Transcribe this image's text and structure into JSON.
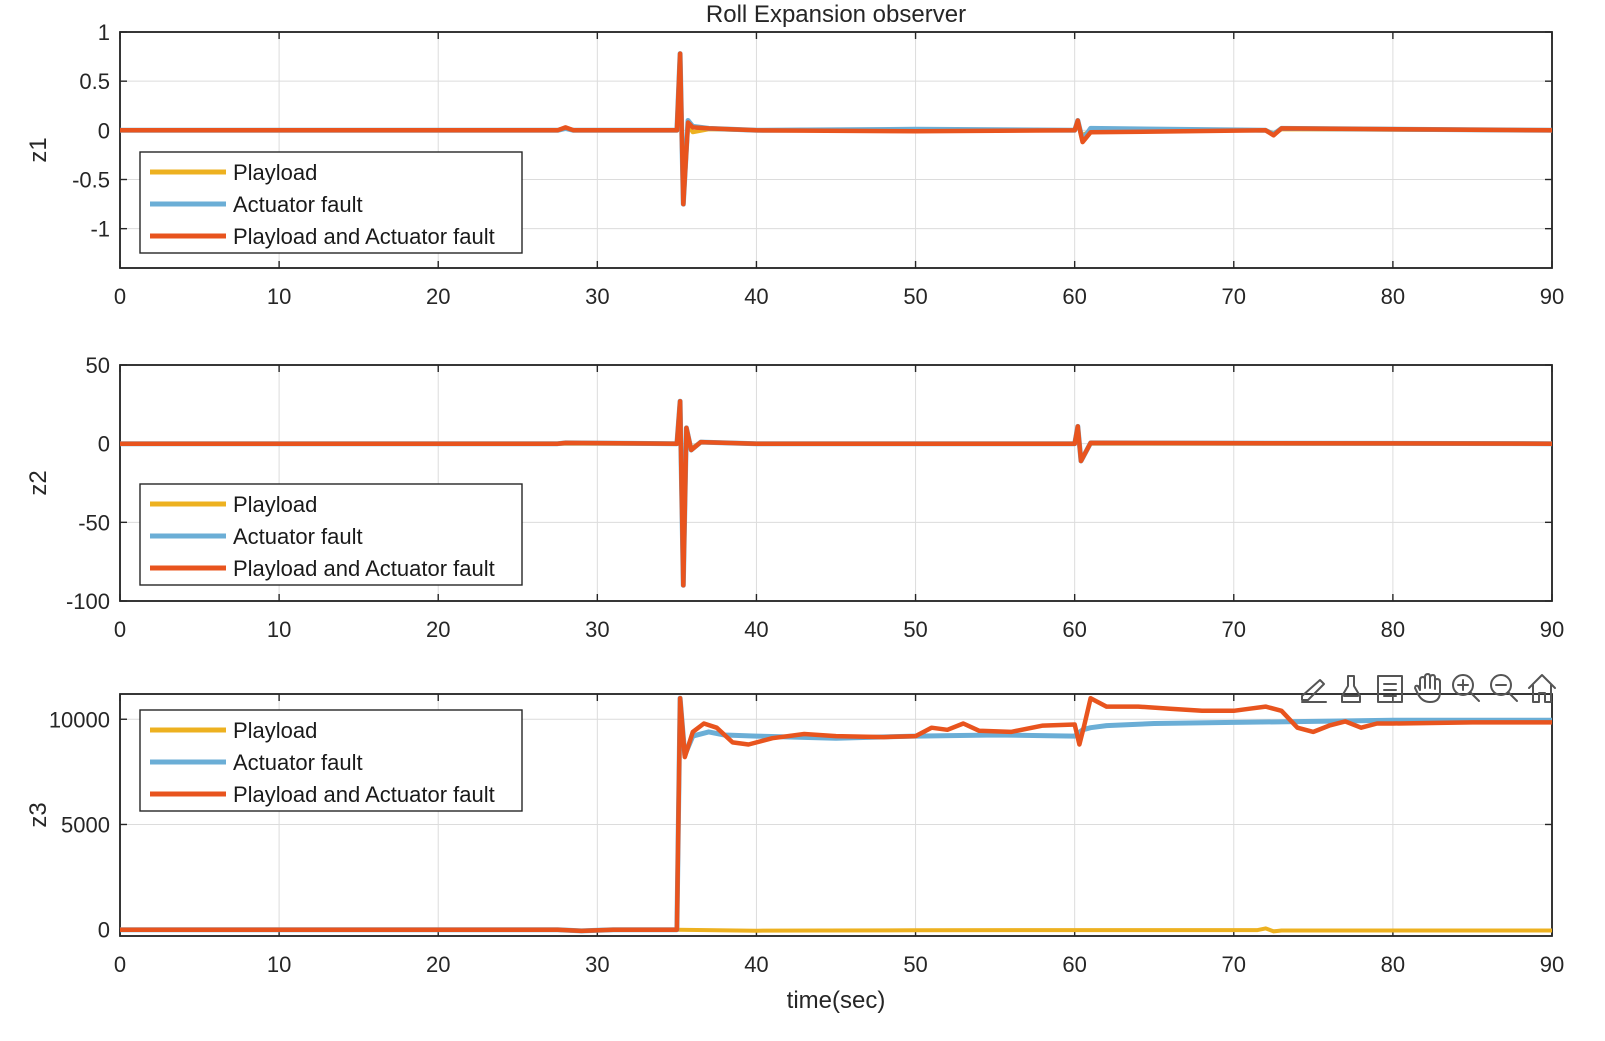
{
  "figure_title": "Roll Expansion observer",
  "colors": {
    "playload": "#EDB120",
    "actuator": "#6BAED6",
    "both": "#E8541E"
  },
  "toolbar": {
    "items": [
      "brush-edit-icon",
      "data-tip-icon",
      "legend-toggle-icon",
      "pan-hand-icon",
      "zoom-in-icon",
      "zoom-out-icon",
      "home-icon"
    ]
  },
  "chart_data": [
    {
      "type": "line",
      "ylabel": "z1",
      "xlabel": "",
      "xlim": [
        0,
        90
      ],
      "ylim": [
        -1.4,
        1
      ],
      "xticks": [
        0,
        10,
        20,
        30,
        40,
        50,
        60,
        70,
        80,
        90
      ],
      "yticks": [
        1,
        0.5,
        0,
        -0.5,
        -1
      ],
      "ytick_labels": [
        "1",
        "0.5",
        "0",
        "-0.5",
        "-1"
      ],
      "grid": true,
      "legend_location": "lower-left",
      "series": [
        {
          "name": "Playload",
          "x": [
            0,
            27.5,
            28,
            28.5,
            35,
            35.2,
            35.4,
            35.7,
            36,
            37,
            40,
            50,
            60,
            60.2,
            60.5,
            61,
            72,
            72.5,
            73,
            90
          ],
          "y": [
            0,
            0,
            0.02,
            0,
            0,
            0.75,
            -0.7,
            0.05,
            -0.02,
            0.01,
            0,
            0,
            0,
            0.05,
            -0.05,
            0,
            0,
            -0.03,
            0.01,
            0
          ]
        },
        {
          "name": "Actuator fault",
          "x": [
            0,
            27.5,
            28,
            28.5,
            35,
            35.2,
            35.4,
            35.7,
            36,
            37,
            40,
            50,
            60,
            60.2,
            60.5,
            61,
            72,
            72.5,
            73,
            90
          ],
          "y": [
            0,
            0,
            0.02,
            0,
            0,
            0.78,
            -0.75,
            0.1,
            0.04,
            0.02,
            0,
            0.01,
            0,
            0.1,
            -0.1,
            0.02,
            0,
            -0.04,
            0.02,
            0
          ]
        },
        {
          "name": "Playload and Actuator fault",
          "x": [
            0,
            27.5,
            28,
            28.5,
            35,
            35.2,
            35.4,
            35.7,
            36,
            37,
            40,
            50,
            60,
            60.2,
            60.5,
            61,
            72,
            72.5,
            73,
            90
          ],
          "y": [
            0,
            0,
            0.03,
            0,
            0,
            0.78,
            -0.75,
            0.08,
            0.03,
            0.02,
            0,
            -0.01,
            0,
            0.1,
            -0.12,
            -0.02,
            0,
            -0.05,
            0.02,
            0
          ]
        }
      ]
    },
    {
      "type": "line",
      "ylabel": "z2",
      "xlabel": "",
      "xlim": [
        0,
        90
      ],
      "ylim": [
        -100,
        50
      ],
      "xticks": [
        0,
        10,
        20,
        30,
        40,
        50,
        60,
        70,
        80,
        90
      ],
      "yticks": [
        50,
        0,
        -50,
        -100
      ],
      "ytick_labels": [
        "50",
        "0",
        "-50",
        "-100"
      ],
      "grid": true,
      "legend_location": "lower-left",
      "series": [
        {
          "name": "Playload",
          "x": [
            0,
            27.5,
            28,
            35,
            35.2,
            35.4,
            35.6,
            35.9,
            36.5,
            40,
            60,
            60.2,
            60.4,
            61,
            90
          ],
          "y": [
            0,
            0,
            0,
            0,
            25,
            -88,
            8,
            -3,
            1,
            0,
            0,
            10,
            -10,
            0,
            0
          ]
        },
        {
          "name": "Actuator fault",
          "x": [
            0,
            27.5,
            28,
            35,
            35.2,
            35.4,
            35.6,
            35.9,
            36.5,
            40,
            60,
            60.2,
            60.4,
            61,
            90
          ],
          "y": [
            0,
            0,
            0.5,
            0,
            27,
            -90,
            10,
            -4,
            1,
            0,
            0,
            11,
            -11,
            0.5,
            0
          ]
        },
        {
          "name": "Playload and Actuator fault",
          "x": [
            0,
            27.5,
            28,
            35,
            35.2,
            35.4,
            35.6,
            35.9,
            36.5,
            40,
            60,
            60.2,
            60.4,
            61,
            90
          ],
          "y": [
            0,
            0,
            0.5,
            0,
            27,
            -90,
            10,
            -4,
            1,
            0,
            0,
            11,
            -11,
            0.5,
            0
          ]
        }
      ]
    },
    {
      "type": "line",
      "ylabel": "z3",
      "xlabel": "time(sec)",
      "xlim": [
        0,
        90
      ],
      "ylim": [
        -300,
        11200
      ],
      "xticks": [
        0,
        10,
        20,
        30,
        40,
        50,
        60,
        70,
        80,
        90
      ],
      "yticks": [
        10000,
        5000,
        0
      ],
      "ytick_labels": [
        "10000",
        "5000",
        "0"
      ],
      "grid": true,
      "legend_location": "upper-left",
      "series": [
        {
          "name": "Playload",
          "x": [
            0,
            27.5,
            29,
            31,
            35,
            40,
            50,
            60,
            71.5,
            72,
            72.5,
            73,
            90
          ],
          "y": [
            0,
            0,
            -60,
            0,
            0,
            -50,
            -30,
            -20,
            -20,
            60,
            -80,
            -40,
            -40
          ]
        },
        {
          "name": "Actuator fault",
          "x": [
            0,
            27.5,
            29,
            31,
            35,
            35.2,
            35.5,
            36,
            37,
            38,
            40,
            45,
            50,
            55,
            60,
            60.5,
            61,
            62,
            65,
            70,
            75,
            80,
            85,
            90
          ],
          "y": [
            0,
            0,
            -60,
            0,
            0,
            11000,
            8300,
            9200,
            9400,
            9250,
            9200,
            9100,
            9200,
            9250,
            9200,
            9500,
            9600,
            9700,
            9800,
            9850,
            9900,
            9950,
            9950,
            9950
          ]
        },
        {
          "name": "Playload and Actuator fault",
          "x": [
            0,
            27.5,
            29,
            31,
            35,
            35.2,
            35.5,
            36,
            36.7,
            37.5,
            38.5,
            39.5,
            41,
            43,
            45,
            48,
            50,
            51,
            52,
            53,
            54,
            56,
            58,
            60,
            60.3,
            60.6,
            61,
            62,
            64,
            66,
            68,
            70,
            71,
            72,
            73,
            74,
            75,
            76,
            77,
            78,
            79,
            80,
            85,
            90
          ],
          "y": [
            0,
            0,
            -60,
            0,
            0,
            11000,
            8200,
            9400,
            9800,
            9600,
            8900,
            8800,
            9100,
            9300,
            9200,
            9150,
            9200,
            9600,
            9500,
            9800,
            9450,
            9400,
            9700,
            9750,
            8800,
            9700,
            11000,
            10600,
            10600,
            10500,
            10400,
            10400,
            10500,
            10600,
            10400,
            9600,
            9400,
            9700,
            9900,
            9600,
            9800,
            9800,
            9850,
            9850
          ]
        }
      ]
    }
  ]
}
